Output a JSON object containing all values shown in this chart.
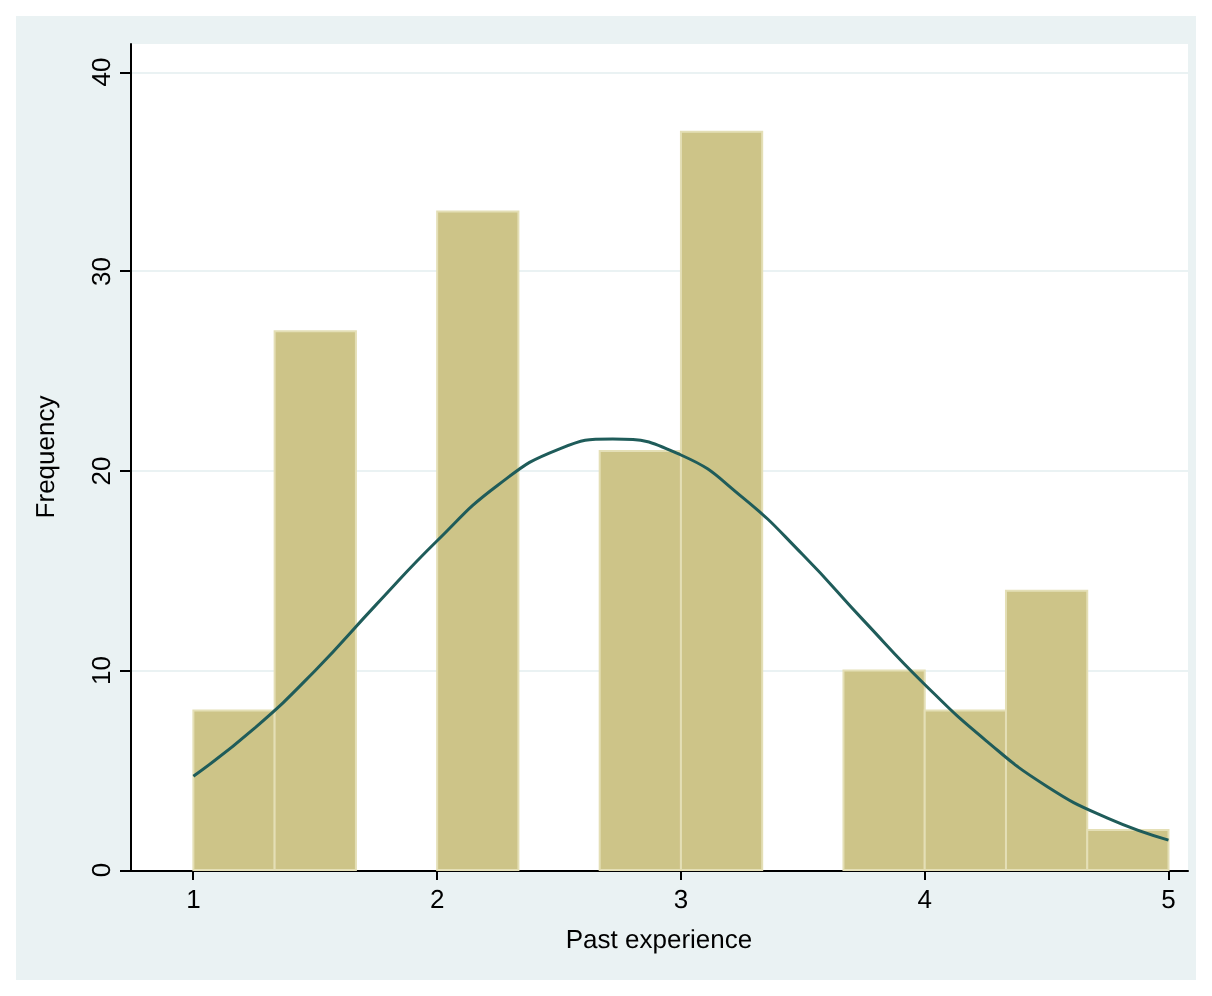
{
  "chart_data": {
    "type": "histogram",
    "xlabel": "Past experience",
    "ylabel": "Frequency",
    "bins": [
      1,
      1.3333,
      1.6667,
      2,
      2.3333,
      2.6667,
      3,
      3.3333,
      3.6667,
      4,
      4.3333,
      4.6667,
      5
    ],
    "series": [
      {
        "color": "#cdc488",
        "values": [
          8,
          27,
          0,
          33,
          0,
          21,
          37,
          0,
          10,
          8,
          14,
          2
        ]
      },
      {
        "type": "line",
        "color": "#1f5c5a",
        "x": [
          1,
          1.25,
          1.5,
          1.75,
          2,
          2.25,
          2.5,
          2.72,
          3,
          3.25,
          3.5,
          3.75,
          4,
          4.25,
          4.5,
          4.75,
          5
        ],
        "values": [
          4.7,
          7.1,
          10.0,
          13.3,
          16.5,
          19.3,
          21.1,
          21.6,
          20.8,
          18.7,
          15.8,
          12.5,
          9.3,
          6.5,
          4.2,
          2.6,
          1.5
        ]
      }
    ],
    "xlim": [
      0.74,
      5.08
    ],
    "xticks": [
      1,
      2,
      3,
      4,
      5
    ],
    "ylim": [
      0,
      41.4
    ],
    "yticks": [
      0,
      10,
      20,
      30,
      40
    ],
    "grid": "y"
  }
}
